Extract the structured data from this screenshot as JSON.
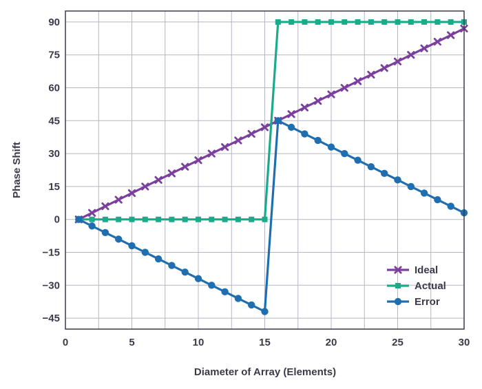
{
  "chart_data": {
    "type": "line",
    "title": "",
    "xlabel": "Diameter of Array (Elements)",
    "ylabel": "Phase Shift",
    "xlim": [
      0,
      30
    ],
    "ylim": [
      -50,
      95
    ],
    "xticks": [
      0,
      5,
      10,
      15,
      20,
      25,
      30
    ],
    "xtick_labels": [
      "0",
      "5",
      "10",
      "15",
      "20",
      "25",
      "30"
    ],
    "yticks": [
      90,
      75,
      60,
      45,
      30,
      15,
      0,
      -15,
      -30,
      -45
    ],
    "ytick_labels": [
      "90",
      "75",
      "60",
      "45",
      "30",
      "15",
      "0",
      "−15",
      "−30",
      "−45"
    ],
    "grid": true,
    "legend_position": "bottom-right",
    "x": [
      1,
      2,
      3,
      4,
      5,
      6,
      7,
      8,
      9,
      10,
      11,
      12,
      13,
      14,
      15,
      16,
      17,
      18,
      19,
      20,
      21,
      22,
      23,
      24,
      25,
      26,
      27,
      28,
      29,
      30
    ],
    "series": [
      {
        "name": "Ideal",
        "color": "#7b3f9e",
        "marker": "x",
        "values": [
          0,
          3,
          6,
          9,
          12,
          15,
          18,
          21,
          24,
          27,
          30,
          33,
          36,
          39,
          42,
          45,
          48,
          51,
          54,
          57,
          60,
          63,
          66,
          69,
          72,
          75,
          78,
          81,
          84,
          87
        ]
      },
      {
        "name": "Actual",
        "color": "#1aab8a",
        "marker": "square",
        "values": [
          0,
          0,
          0,
          0,
          0,
          0,
          0,
          0,
          0,
          0,
          0,
          0,
          0,
          0,
          0,
          90,
          90,
          90,
          90,
          90,
          90,
          90,
          90,
          90,
          90,
          90,
          90,
          90,
          90,
          90
        ]
      },
      {
        "name": "Error",
        "color": "#1f6fb0",
        "marker": "circle",
        "values": [
          0,
          -3,
          -6,
          -9,
          -12,
          -15,
          -18,
          -21,
          -24,
          -27,
          -30,
          -33,
          -36,
          -39,
          -42,
          45,
          42,
          39,
          36,
          33,
          30,
          27,
          24,
          21,
          18,
          15,
          12,
          9,
          6,
          3
        ]
      }
    ]
  }
}
